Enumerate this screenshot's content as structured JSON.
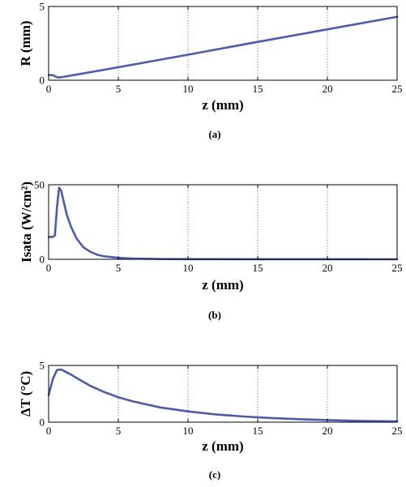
{
  "chart_data": [
    {
      "type": "line",
      "panel": "(a)",
      "xlabel": "z (mm)",
      "ylabel": "R (mm)",
      "xlim": [
        0,
        25
      ],
      "ylim": [
        0,
        5
      ],
      "xticks": [
        "0",
        "5",
        "10",
        "15",
        "20",
        "25"
      ],
      "yticks": [
        "0",
        "5"
      ],
      "grid": "vertical dotted",
      "series": [
        {
          "color": "#4a5ab8",
          "x": [
            0,
            0.3,
            0.5,
            0.7,
            1,
            2,
            5,
            10,
            15,
            20,
            25
          ],
          "y": [
            0.35,
            0.35,
            0.25,
            0.18,
            0.22,
            0.38,
            0.88,
            1.73,
            2.6,
            3.45,
            4.3
          ]
        }
      ]
    },
    {
      "type": "line",
      "panel": "(b)",
      "xlabel": "z (mm)",
      "ylabel": "Isata (W/cm²)",
      "xlim": [
        0,
        25
      ],
      "ylim": [
        0,
        50
      ],
      "xticks": [
        "0",
        "5",
        "10",
        "15",
        "20",
        "25"
      ],
      "yticks": [
        "0",
        "50"
      ],
      "grid": "vertical dotted",
      "series": [
        {
          "color": "#4a5ab8",
          "x": [
            0,
            0.3,
            0.45,
            0.6,
            0.75,
            0.9,
            1.1,
            1.3,
            1.6,
            2,
            2.5,
            3,
            3.5,
            4,
            5,
            6,
            8,
            10,
            15,
            20,
            25
          ],
          "y": [
            15,
            15,
            16,
            35,
            48,
            46,
            38,
            30,
            22,
            14,
            8,
            5,
            3,
            2,
            1,
            0.5,
            0.2,
            0.1,
            0.05,
            0.02,
            0
          ]
        }
      ]
    },
    {
      "type": "line",
      "panel": "(c)",
      "xlabel": "z (mm)",
      "ylabel": "ΔT (°C)",
      "xlim": [
        0,
        25
      ],
      "ylim": [
        0,
        5
      ],
      "xticks": [
        "0",
        "5",
        "10",
        "15",
        "20",
        "25"
      ],
      "yticks": [
        "0",
        "5"
      ],
      "grid": "vertical dotted",
      "series": [
        {
          "color": "#4a5ab8",
          "x": [
            0,
            0.3,
            0.6,
            0.9,
            1.2,
            1.6,
            2,
            3,
            4,
            5,
            6,
            8,
            10,
            12,
            14,
            16,
            18,
            20,
            22,
            25
          ],
          "y": [
            2.4,
            3.8,
            4.6,
            4.65,
            4.45,
            4.2,
            3.9,
            3.2,
            2.65,
            2.2,
            1.85,
            1.3,
            0.95,
            0.68,
            0.5,
            0.36,
            0.26,
            0.18,
            0.12,
            0.07
          ]
        }
      ]
    }
  ]
}
